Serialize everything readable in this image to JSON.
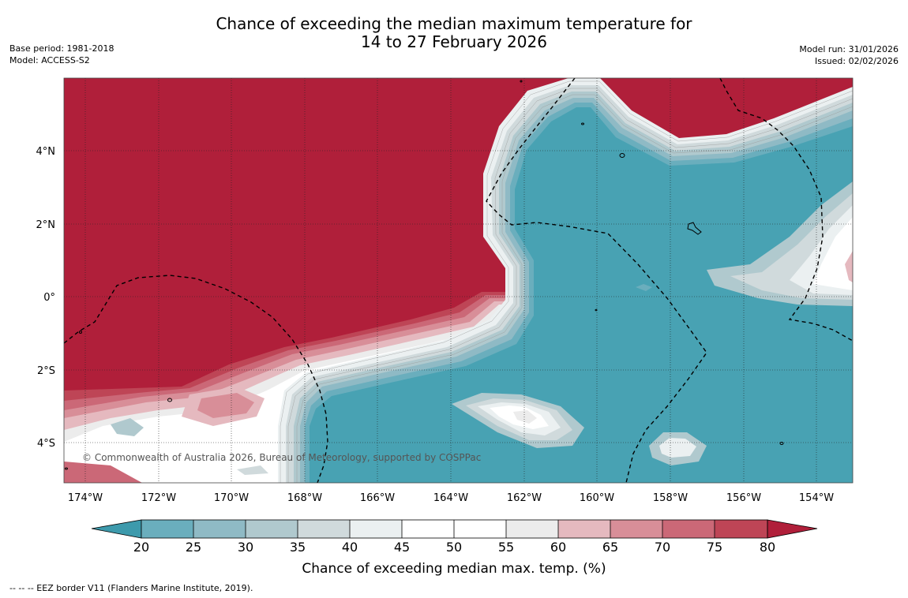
{
  "title_line1": "Chance of exceeding the median maximum temperature for",
  "title_line2": "14 to 27 February 2026",
  "base_period": "Base period: 1981-2018",
  "model": "Model: ACCESS-S2",
  "model_run": "Model run: 31/01/2026",
  "issued": "Issued: 02/02/2026",
  "credit": "© Commonwealth of Australia 2026, Bureau of Meteorology, supported by COSPPac",
  "footer": "--  --  -- EEZ border V11 (Flanders Marine Institute, 2019).",
  "colors": {
    "c15": "#3d9aac",
    "c20": "#48a2b3",
    "c25": "#6aaebd",
    "c30": "#8fbac5",
    "c35": "#b0c9ce",
    "c40": "#d0dadc",
    "c45": "#ebf0f1",
    "c50": "#ffffff",
    "c55": "#ffffff",
    "c60": "#ececec",
    "c65": "#e5b9bf",
    "c70": "#d88e98",
    "c75": "#cb6877",
    "c80": "#be4556",
    "c85": "#b01f3a"
  },
  "chart_data": {
    "type": "map",
    "variable": "Chance of exceeding median max. temp. (%)",
    "y_ticks": [
      {
        "label": "4°N",
        "value": 4
      },
      {
        "label": "2°N",
        "value": 2
      },
      {
        "label": "0°",
        "value": 0
      },
      {
        "label": "2°S",
        "value": -2
      },
      {
        "label": "4°S",
        "value": -4
      }
    ],
    "x_ticks": [
      {
        "label": "174°W",
        "value": -174
      },
      {
        "label": "172°W",
        "value": -172
      },
      {
        "label": "170°W",
        "value": -170
      },
      {
        "label": "168°W",
        "value": -168
      },
      {
        "label": "166°W",
        "value": -166
      },
      {
        "label": "164°W",
        "value": -164
      },
      {
        "label": "162°W",
        "value": -162
      },
      {
        "label": "160°W",
        "value": -160
      },
      {
        "label": "158°W",
        "value": -158
      },
      {
        "label": "156°W",
        "value": -156
      },
      {
        "label": "154°W",
        "value": -154
      }
    ],
    "lon_range": [
      -174.6,
      -153.0
    ],
    "lat_range": [
      -5.1,
      6.0
    ],
    "colorbar": {
      "ticks": [
        "20",
        "25",
        "30",
        "35",
        "40",
        "45",
        "50",
        "55",
        "60",
        "65",
        "70",
        "75",
        "80"
      ],
      "label": "Chance of exceeding median max. temp. (%)"
    }
  }
}
